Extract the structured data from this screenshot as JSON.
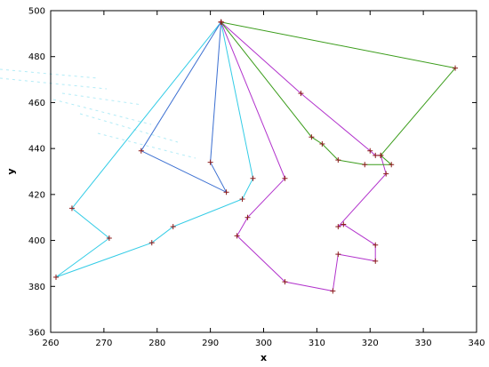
{
  "chart_data": {
    "type": "line",
    "xlabel": "x",
    "ylabel": "y",
    "xlim": [
      260,
      340
    ],
    "ylim": [
      360,
      500
    ],
    "xticks": [
      260,
      270,
      280,
      290,
      300,
      310,
      320,
      330,
      340
    ],
    "yticks": [
      360,
      380,
      400,
      420,
      440,
      460,
      480,
      500
    ],
    "grid": false,
    "legend": "none",
    "marker": "+",
    "marker_color": "#8b1a1a",
    "series": [
      {
        "color": "#33cce6",
        "points": [
          [
            292,
            495
          ],
          [
            264,
            414
          ],
          [
            271,
            401
          ],
          [
            261,
            384
          ],
          [
            279,
            399
          ],
          [
            283,
            406
          ],
          [
            296,
            418
          ],
          [
            298,
            427
          ],
          [
            292,
            495
          ]
        ]
      },
      {
        "color": "#3b6fd1",
        "points": [
          [
            292,
            495
          ],
          [
            277,
            439
          ],
          [
            293,
            421
          ],
          [
            290,
            434
          ],
          [
            292,
            495
          ]
        ]
      },
      {
        "color": "#b233cc",
        "points": [
          [
            292,
            495
          ],
          [
            304,
            427
          ],
          [
            297,
            410
          ],
          [
            295,
            402
          ],
          [
            304,
            382
          ],
          [
            313,
            378
          ],
          [
            314,
            394
          ],
          [
            321,
            391
          ],
          [
            321,
            398
          ],
          [
            315,
            407
          ],
          [
            314,
            406
          ],
          [
            323,
            429
          ],
          [
            322,
            437
          ],
          [
            321,
            437
          ],
          [
            320,
            439
          ],
          [
            307,
            464
          ],
          [
            292,
            495
          ]
        ]
      },
      {
        "color": "#3a9c1a",
        "points": [
          [
            292,
            495
          ],
          [
            336,
            475
          ],
          [
            322,
            437
          ],
          [
            324,
            433
          ],
          [
            319,
            433
          ],
          [
            314,
            435
          ],
          [
            311,
            442
          ],
          [
            309,
            445
          ],
          [
            292,
            495
          ]
        ]
      }
    ]
  }
}
